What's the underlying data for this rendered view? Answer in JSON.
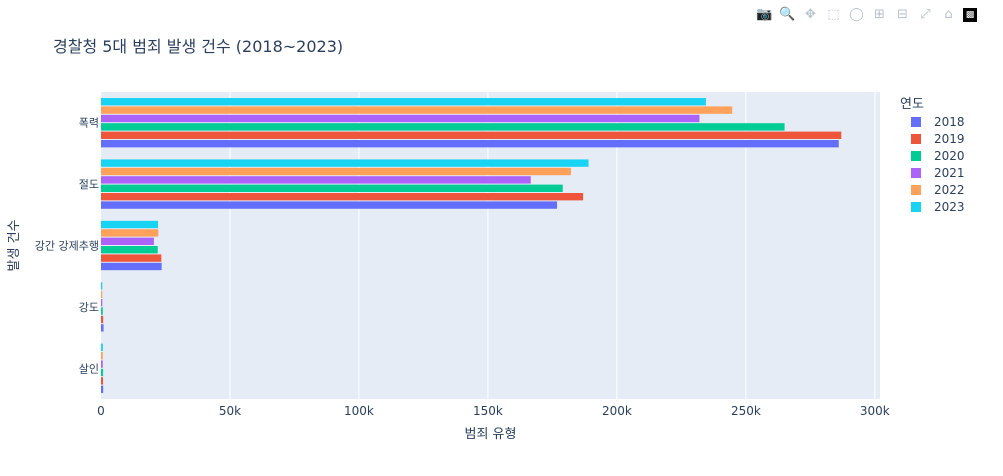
{
  "title": "경찰청 5대 범죄 발생 건수 (2018~2023)",
  "modebar": {
    "icons": [
      "camera-icon",
      "zoom-icon",
      "pan-icon",
      "box-select-icon",
      "lasso-icon",
      "zoom-in-icon",
      "zoom-out-icon",
      "autoscale-icon",
      "reset-axes-icon",
      "plotly-logo-icon"
    ]
  },
  "colors": {
    "2018": "#636efa",
    "2019": "#ef553b",
    "2020": "#00cc96",
    "2021": "#ab63fa",
    "2022": "#ffa15a",
    "2023": "#19d3f3",
    "plot_bg": "#e5ecf6"
  },
  "chart_data": {
    "type": "bar",
    "orientation": "horizontal",
    "title": "경찰청 5대 범죄 발생 건수 (2018~2023)",
    "xlabel": "범죄 유형",
    "ylabel": "발생 건수",
    "xlim": [
      0,
      302000
    ],
    "x_ticks": [
      0,
      50000,
      100000,
      150000,
      200000,
      250000,
      300000
    ],
    "x_tick_labels": [
      "0",
      "50k",
      "100k",
      "150k",
      "200k",
      "250k",
      "300k"
    ],
    "categories": [
      "살인",
      "강도",
      "강간 강제추행",
      "절도",
      "폭력"
    ],
    "legend_title": "연도",
    "legend_position": "right",
    "grid": true,
    "series": [
      {
        "name": "2018",
        "values": [
          850,
          990,
          23500,
          176800,
          286000
        ]
      },
      {
        "name": "2019",
        "values": [
          800,
          840,
          23400,
          186900,
          287000
        ]
      },
      {
        "name": "2020",
        "values": [
          800,
          690,
          22000,
          179000,
          265000
        ]
      },
      {
        "name": "2021",
        "values": [
          690,
          510,
          20500,
          166600,
          232000
        ]
      },
      {
        "name": "2022",
        "values": [
          710,
          490,
          22200,
          182200,
          244700
        ]
      },
      {
        "name": "2023",
        "values": [
          720,
          500,
          22100,
          189000,
          234500
        ]
      }
    ]
  }
}
